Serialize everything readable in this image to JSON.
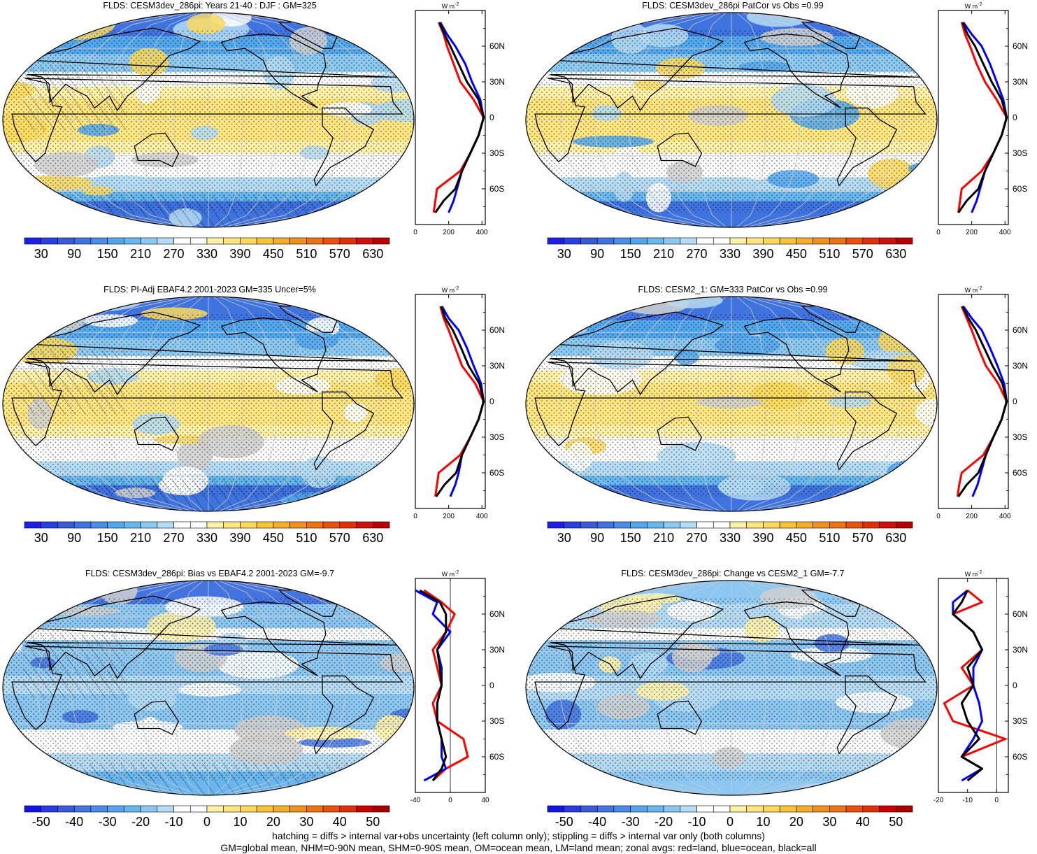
{
  "panels": [
    {
      "title": "FLDS: CESM3dev_286pi: Years 21-40 : DJF : GM=325",
      "kind": "abs",
      "colorbar_labels": [
        "30",
        "90",
        "150",
        "210",
        "270",
        "330",
        "390",
        "450",
        "510",
        "570",
        "630"
      ],
      "profile_xticks": [
        "0",
        "200",
        "400"
      ],
      "profile_xlim": [
        0,
        420
      ],
      "profile_units": "W m",
      "profile_units_exp": "-2",
      "lat_labels": [
        "60N",
        "30N",
        "0",
        "30S",
        "60S"
      ]
    },
    {
      "title": "FLDS: CESM3dev_286pi PatCor vs Obs =0.99",
      "kind": "abs",
      "colorbar_labels": [
        "30",
        "90",
        "150",
        "210",
        "270",
        "330",
        "390",
        "450",
        "510",
        "570",
        "630"
      ],
      "profile_xticks": [
        "0",
        "200",
        "400"
      ],
      "profile_xlim": [
        0,
        420
      ],
      "profile_units": "W m",
      "profile_units_exp": "-2",
      "lat_labels": [
        "60N",
        "30N",
        "0",
        "30S",
        "60S"
      ]
    },
    {
      "title": "FLDS: PI-Adj EBAF4.2 2001-2023 GM=335 Uncer=5%",
      "kind": "abs",
      "colorbar_labels": [
        "30",
        "90",
        "150",
        "210",
        "270",
        "330",
        "390",
        "450",
        "510",
        "570",
        "630"
      ],
      "profile_xticks": [
        "0",
        "200",
        "400"
      ],
      "profile_xlim": [
        0,
        420
      ],
      "profile_units": "W m",
      "profile_units_exp": "-2",
      "lat_labels": [
        "60N",
        "30N",
        "0",
        "30S",
        "60S"
      ]
    },
    {
      "title": "FLDS: CESM2_1: GM=333 PatCor vs Obs =0.99",
      "kind": "abs",
      "colorbar_labels": [
        "30",
        "90",
        "150",
        "210",
        "270",
        "330",
        "390",
        "450",
        "510",
        "570",
        "630"
      ],
      "profile_xticks": [
        "0",
        "200",
        "400"
      ],
      "profile_xlim": [
        0,
        420
      ],
      "profile_units": "W m",
      "profile_units_exp": "-2",
      "lat_labels": [
        "60N",
        "30N",
        "0",
        "30S",
        "60S"
      ]
    },
    {
      "title": "FLDS: CESM3dev_286pi: Bias vs EBAF4.2 2001-2023 GM=-9.7",
      "kind": "diff",
      "colorbar_labels": [
        "-50",
        "-40",
        "-30",
        "-20",
        "-10",
        "0",
        "10",
        "20",
        "30",
        "40",
        "50"
      ],
      "profile_xticks": [
        "-40",
        "0",
        "40"
      ],
      "profile_xlim": [
        -40,
        40
      ],
      "profile_units": "W m",
      "profile_units_exp": "-2",
      "lat_labels": [
        "60N",
        "30N",
        "0",
        "30S",
        "60S"
      ]
    },
    {
      "title": "FLDS: CESM3dev_286pi: Change vs CESM2_1 GM=-7.7",
      "kind": "diff2",
      "colorbar_labels": [
        "-50",
        "-40",
        "-30",
        "-20",
        "-10",
        "0",
        "10",
        "20",
        "30",
        "40",
        "50"
      ],
      "profile_xticks": [
        "-20",
        "-10",
        "0"
      ],
      "profile_xlim": [
        -20,
        4
      ],
      "profile_units": "W m",
      "profile_units_exp": "-2",
      "lat_labels": [
        "60N",
        "30N",
        "0",
        "30S",
        "60S"
      ]
    }
  ],
  "footnote": {
    "line1": "hatching = diffs > internal var+obs uncertainty (left column only); stippling = diffs > internal var only (both columns)",
    "line2": "GM=global mean, NHM=0-90N mean, SHM=0-90S mean, OM=ocean mean, LM=land mean; zonal avgs: red=land, blue=ocean, black=all"
  },
  "colors": {
    "abs_scale": [
      "#1e1ee6",
      "#2a3fe0",
      "#3a5ad8",
      "#3f73e0",
      "#4a8ee8",
      "#52a6ec",
      "#66b8ee",
      "#8ccaf2",
      "#b4dcf4",
      "#ffffff",
      "#ffffff",
      "#fff1a8",
      "#ffe680",
      "#fcd95c",
      "#f8c43c",
      "#f4ad2c",
      "#f0921e",
      "#ec7414",
      "#e8520e",
      "#e0300a",
      "#d01010",
      "#b80000"
    ],
    "diff_scale": [
      "#1414e0",
      "#2a3ae0",
      "#3a5ad8",
      "#4474e0",
      "#4c8ce8",
      "#56a2ec",
      "#6ab6ee",
      "#8cc8f2",
      "#b4dcf4",
      "#ffffff",
      "#ffffff",
      "#fff1a8",
      "#ffe680",
      "#fcd95c",
      "#f8c43c",
      "#f4ad2c",
      "#f0921e",
      "#ec7414",
      "#e8520e",
      "#e0300a",
      "#c80000",
      "#a80000"
    ],
    "land_red": "#ff0000",
    "ocean_blue": "#0000ff",
    "all_black": "#000000"
  },
  "chart_data": [
    {
      "type": "heatmap",
      "title": "FLDS: CESM3dev_286pi: Years 21-40 : DJF : GM=325",
      "legend_ticks": [
        30,
        90,
        150,
        210,
        270,
        330,
        390,
        450,
        510,
        570,
        630
      ],
      "zonal_profile": {
        "lat": [
          80,
          70,
          60,
          45,
          30,
          15,
          0,
          -15,
          -30,
          -45,
          -60,
          -70,
          -80
        ],
        "land": [
          140,
          170,
          190,
          230,
          270,
          350,
          410,
          380,
          330,
          270,
          130,
          120,
          110
        ],
        "ocean": [
          150,
          190,
          240,
          300,
          340,
          390,
          410,
          380,
          330,
          280,
          250,
          230,
          200
        ],
        "all": [
          145,
          175,
          210,
          260,
          310,
          380,
          410,
          380,
          330,
          280,
          240,
          170,
          120
        ]
      }
    },
    {
      "type": "heatmap",
      "title": "FLDS: CESM3dev_286pi PatCor vs Obs =0.99",
      "legend_ticks": [
        30,
        90,
        150,
        210,
        270,
        330,
        390,
        450,
        510,
        570,
        630
      ],
      "zonal_profile": {
        "lat": [
          80,
          70,
          60,
          45,
          30,
          15,
          0,
          -15,
          -30,
          -45,
          -60,
          -70,
          -80
        ],
        "land": [
          140,
          160,
          190,
          230,
          280,
          350,
          410,
          380,
          330,
          260,
          140,
          130,
          120
        ],
        "ocean": [
          150,
          200,
          260,
          310,
          350,
          390,
          410,
          380,
          330,
          280,
          250,
          230,
          200
        ],
        "all": [
          145,
          175,
          220,
          270,
          320,
          380,
          410,
          380,
          330,
          280,
          240,
          170,
          120
        ]
      }
    },
    {
      "type": "heatmap",
      "title": "FLDS: PI-Adj EBAF4.2 2001-2023 GM=335 Uncer=5%",
      "legend_ticks": [
        30,
        90,
        150,
        210,
        270,
        330,
        390,
        450,
        510,
        570,
        630
      ],
      "zonal_profile": {
        "lat": [
          80,
          70,
          60,
          45,
          30,
          15,
          0,
          -15,
          -30,
          -45,
          -60,
          -70,
          -80
        ],
        "land": [
          150,
          170,
          200,
          240,
          280,
          360,
          410,
          380,
          330,
          270,
          140,
          130,
          120
        ],
        "ocean": [
          160,
          200,
          260,
          310,
          350,
          395,
          410,
          380,
          330,
          280,
          260,
          240,
          210
        ],
        "all": [
          155,
          180,
          225,
          275,
          320,
          385,
          410,
          380,
          330,
          280,
          245,
          175,
          125
        ]
      }
    },
    {
      "type": "heatmap",
      "title": "FLDS: CESM2_1: GM=333 PatCor vs Obs =0.99",
      "legend_ticks": [
        30,
        90,
        150,
        210,
        270,
        330,
        390,
        450,
        510,
        570,
        630
      ],
      "zonal_profile": {
        "lat": [
          80,
          70,
          60,
          45,
          30,
          15,
          0,
          -15,
          -30,
          -45,
          -60,
          -70,
          -80
        ],
        "land": [
          140,
          170,
          200,
          240,
          285,
          360,
          410,
          380,
          330,
          270,
          140,
          125,
          115
        ],
        "ocean": [
          150,
          200,
          260,
          310,
          355,
          395,
          410,
          380,
          330,
          285,
          255,
          235,
          205
        ],
        "all": [
          145,
          180,
          225,
          275,
          325,
          385,
          410,
          380,
          330,
          285,
          240,
          170,
          120
        ]
      }
    },
    {
      "type": "heatmap",
      "title": "FLDS: CESM3dev_286pi: Bias vs EBAF4.2 2001-2023 GM=-9.7",
      "legend_ticks": [
        -50,
        -40,
        -30,
        -20,
        -10,
        0,
        10,
        20,
        30,
        40,
        50
      ],
      "zonal_profile": {
        "lat": [
          80,
          70,
          60,
          45,
          30,
          15,
          0,
          -15,
          -30,
          -45,
          -60,
          -70,
          -80
        ],
        "land": [
          -30,
          -10,
          5,
          -5,
          -20,
          -15,
          -10,
          -20,
          -15,
          15,
          20,
          -5,
          -20
        ],
        "ocean": [
          -40,
          -15,
          -20,
          0,
          -15,
          -10,
          -10,
          -15,
          -15,
          -10,
          -10,
          -5,
          -30
        ],
        "all": [
          -35,
          -12,
          -5,
          -5,
          -15,
          -12,
          -10,
          -15,
          -15,
          -10,
          -5,
          -10,
          -20
        ]
      }
    },
    {
      "type": "heatmap",
      "title": "FLDS: CESM3dev_286pi: Change vs CESM2_1 GM=-7.7",
      "legend_ticks": [
        -50,
        -40,
        -30,
        -20,
        -10,
        0,
        10,
        20,
        30,
        40,
        50
      ],
      "zonal_profile": {
        "lat": [
          80,
          70,
          60,
          45,
          30,
          15,
          0,
          -15,
          -30,
          -45,
          -60,
          -70,
          -80
        ],
        "land": [
          -10,
          -5,
          -15,
          -8,
          -5,
          -12,
          -8,
          -18,
          -15,
          3,
          -12,
          -5,
          -10
        ],
        "ocean": [
          -10,
          -15,
          -15,
          -8,
          -5,
          -8,
          -8,
          -6,
          -5,
          -8,
          -12,
          -5,
          -12
        ],
        "all": [
          -10,
          -12,
          -15,
          -8,
          -5,
          -10,
          -8,
          -12,
          -10,
          -6,
          -12,
          -5,
          -10
        ]
      }
    }
  ]
}
